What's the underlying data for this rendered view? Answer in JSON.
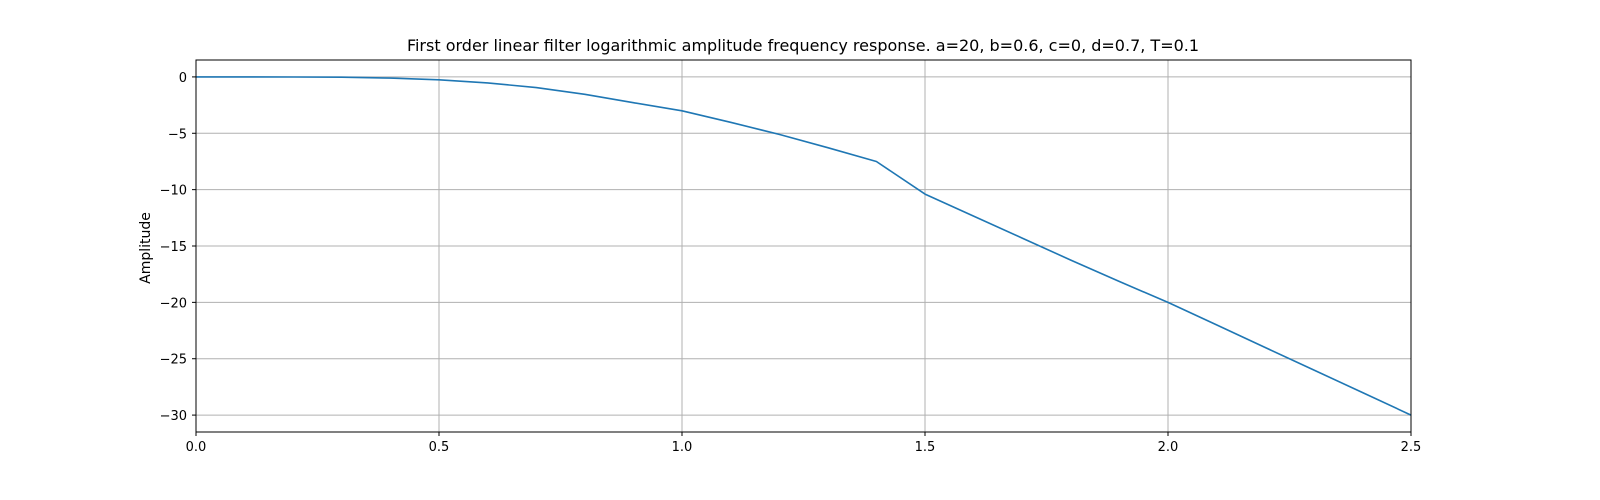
{
  "chart_data": {
    "type": "line",
    "title": "First order linear filter logarithmic amplitude frequency response. a=20, b=0.6, c=0, d=0.7, T=0.1",
    "xlabel": "",
    "ylabel": "Amplitude",
    "xlim": [
      0,
      2.5
    ],
    "ylim": [
      -31.5,
      1.5
    ],
    "x_ticks": [
      0.0,
      0.5,
      1.0,
      1.5,
      2.0,
      2.5
    ],
    "x_tick_labels": [
      "0.0",
      "0.5",
      "1.0",
      "1.5",
      "2.0",
      "2.5"
    ],
    "y_ticks": [
      0,
      -5,
      -10,
      -15,
      -20,
      -25,
      -30
    ],
    "y_tick_labels": [
      "0",
      "−5",
      "−10",
      "−15",
      "−20",
      "−25",
      "−30"
    ],
    "grid": true,
    "legend": false,
    "series": [
      {
        "color": "#1f77b4",
        "x": [
          0.0,
          0.1,
          0.2,
          0.3,
          0.4,
          0.5,
          0.6,
          0.7,
          0.8,
          0.9,
          1.0,
          1.1,
          1.2,
          1.3,
          1.4,
          1.5,
          1.6,
          1.7,
          1.8,
          1.9,
          2.0,
          2.1,
          2.2,
          2.3,
          2.4,
          2.5
        ],
        "y": [
          0.0,
          -0.0,
          -0.01,
          -0.03,
          -0.11,
          -0.26,
          -0.53,
          -0.95,
          -1.54,
          -2.29,
          -3.01,
          -4.03,
          -5.1,
          -6.28,
          -7.5,
          -10.4,
          -12.35,
          -14.3,
          -16.25,
          -18.15,
          -20.0,
          -22.0,
          -24.0,
          -26.0,
          -28.0,
          -30.0
        ]
      }
    ]
  }
}
